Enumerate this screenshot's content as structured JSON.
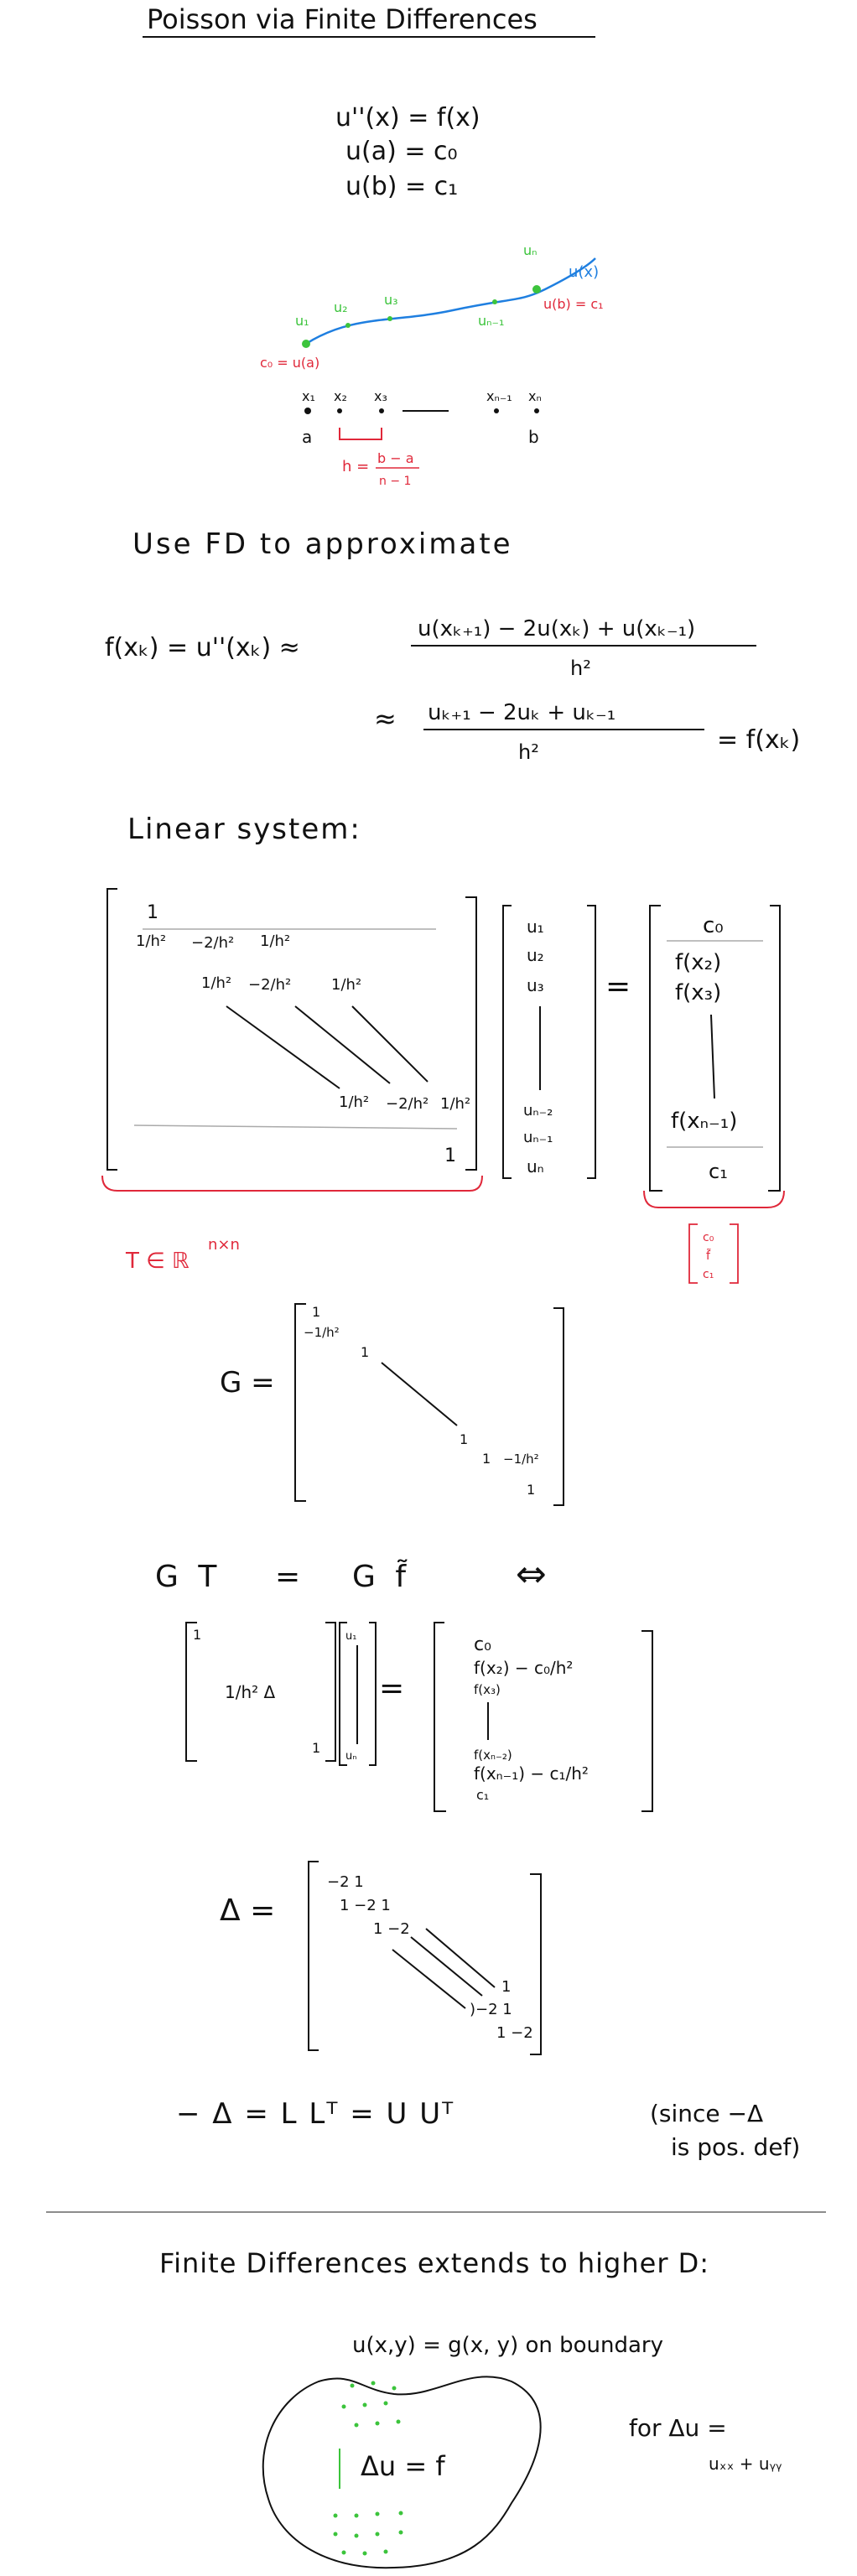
{
  "title": "Poisson via Finite Differences",
  "problem": {
    "eq1": "u''(x) = f(x)",
    "eq2": "u(a) = c₀",
    "eq3": "u(b) = c₁"
  },
  "grid_sketch": {
    "u_labels": [
      "u₁",
      "u₂",
      "u₃",
      "uₙ₋₁",
      "uₙ"
    ],
    "curve_label": "u(x)",
    "left_bc": "c₀ = u(a)",
    "right_bc": "u(b) = c₁",
    "x_labels": [
      "x₁",
      "x₂",
      "x₃",
      "xₙ₋₁",
      "xₙ"
    ],
    "a": "a",
    "b": "b",
    "h_label": "h =",
    "h_num": "b − a",
    "h_den": "n − 1"
  },
  "fd_heading": "Use FD to approximate",
  "fd": {
    "lhs": "f(xₖ)  =  u''(xₖ)  ≈",
    "num1": "u(xₖ₊₁) − 2u(xₖ) + u(xₖ₋₁)",
    "den1": "h²",
    "approx2": "≈",
    "num2": "uₖ₊₁ − 2uₖ + uₖ₋₁",
    "den2": "h²",
    "rhs2": "= f(xₖ)"
  },
  "linear_heading": "Linear system:",
  "system": {
    "row1": "1",
    "row2": [
      "1/h²",
      "−2/h²",
      "1/h²"
    ],
    "row3": [
      "1/h²",
      "−2/h²",
      "1/h²"
    ],
    "rown1": [
      "1/h²",
      "−2/h²",
      "1/h²"
    ],
    "rown": "1",
    "u_vec": [
      "u₁",
      "u₂",
      "u₃",
      "uₙ₋₂",
      "uₙ₋₁",
      "uₙ"
    ],
    "eq": "=",
    "rhs_vec": [
      "c₀",
      "f(x₂)",
      "f(x₃)",
      "f(xₙ₋₁)",
      "c₁"
    ],
    "t_label": "T ∈ ℝ",
    "t_sup": "n×n",
    "tf_label": [
      "c₀",
      "f̃",
      "c₁"
    ]
  },
  "g_matrix": {
    "label": "G =",
    "top": [
      "1",
      "−1/h²",
      "1"
    ],
    "bottom": [
      "1",
      "1",
      "−1/h²",
      "1"
    ]
  },
  "gt": {
    "lhs": "G T",
    "eq": "=",
    "rhs": "G f̃",
    "iff": "⇔",
    "one_top": "1",
    "inner": "1/h² Δ",
    "one_bot": "1",
    "u_top": "u₁",
    "u_bot": "uₙ",
    "eq2": "=",
    "rhs_vec": [
      "c₀",
      "f(x₂) − c₀/h²",
      "f(x₃)",
      "f(xₙ₋₂)",
      "f(xₙ₋₁) − c₁/h²",
      "c₁"
    ]
  },
  "delta": {
    "label": "Δ =",
    "rows": [
      "−2  1",
      "1  −2  1",
      "1  −2",
      "1",
      ")−2  1",
      "1  −2"
    ]
  },
  "cholesky": {
    "eq": "− Δ  =  L Lᵀ  =  U Uᵀ",
    "note1": "(since −Δ",
    "note2": "is pos. def)"
  },
  "higher": {
    "heading": "Finite Differences extends to higher D:",
    "bc": "u(x,y) = g(x, y)   on boundary",
    "pde": "Δu = f",
    "for_label": "for  Δu =",
    "laplace": "uₓₓ + uᵧᵧ"
  },
  "colors": {
    "ink": "#111111",
    "red": "#e0283a",
    "green": "#3cc43c",
    "blue": "#1f7fe0",
    "rule": "#aaaaaa"
  }
}
